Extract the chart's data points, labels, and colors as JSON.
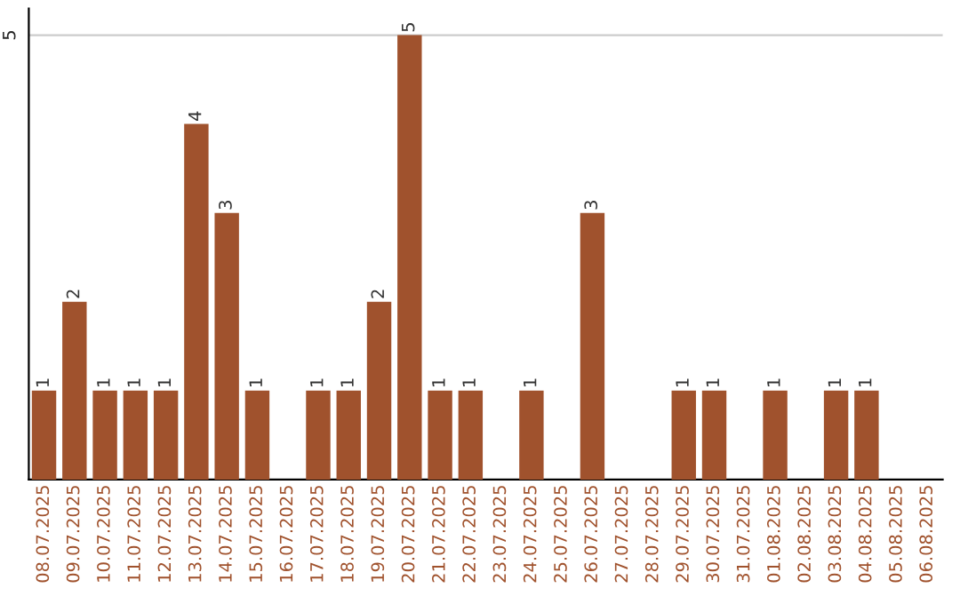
{
  "chart_data": {
    "type": "bar",
    "categories": [
      "08.07.2025",
      "09.07.2025",
      "10.07.2025",
      "11.07.2025",
      "12.07.2025",
      "13.07.2025",
      "14.07.2025",
      "15.07.2025",
      "16.07.2025",
      "17.07.2025",
      "18.07.2025",
      "19.07.2025",
      "20.07.2025",
      "21.07.2025",
      "22.07.2025",
      "23.07.2025",
      "24.07.2025",
      "25.07.2025",
      "26.07.2025",
      "27.07.2025",
      "28.07.2025",
      "29.07.2025",
      "30.07.2025",
      "31.07.2025",
      "01.08.2025",
      "02.08.2025",
      "03.08.2025",
      "04.08.2025",
      "05.08.2025",
      "06.08.2025"
    ],
    "values": [
      1,
      2,
      1,
      1,
      1,
      4,
      3,
      1,
      0,
      1,
      1,
      2,
      5,
      1,
      1,
      0,
      1,
      0,
      3,
      0,
      0,
      1,
      1,
      0,
      1,
      0,
      1,
      1,
      0,
      0
    ],
    "value_labels": [
      "1",
      "2",
      "1",
      "1",
      "1",
      "4",
      "3",
      "1",
      null,
      "1",
      "1",
      "2",
      "5",
      "1",
      "1",
      null,
      "1",
      null,
      "3",
      null,
      null,
      "1",
      "1",
      null,
      "1",
      null,
      "1",
      "1",
      null,
      null
    ],
    "color": "#a0522d",
    "ylim": [
      0,
      5.3
    ],
    "yticks": [
      5
    ],
    "grid": "y"
  }
}
